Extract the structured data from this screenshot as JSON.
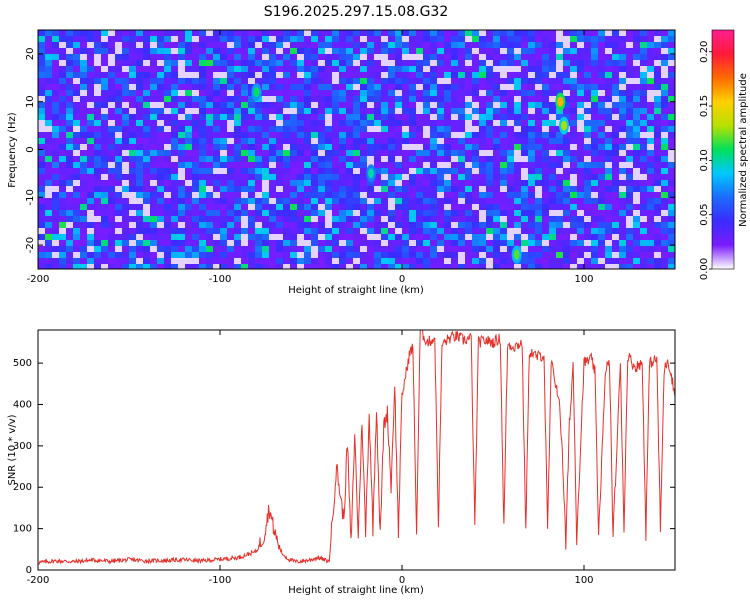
{
  "title": "S196.2025.297.15.08.G32",
  "colors": {
    "snr_line": "#e8302a",
    "colorbar": [
      "#ffffff",
      "#7a1cff",
      "#3a2cff",
      "#1c6bff",
      "#00c8ff",
      "#00e05a",
      "#b8e000",
      "#ffd000",
      "#ff6a00",
      "#ff1a3a",
      "#ff1f8f"
    ]
  },
  "chart_data": [
    {
      "type": "heatmap",
      "xlabel": "Height of straight line (km)",
      "ylabel": "Frequency (Hz)",
      "xlim": [
        -200,
        150
      ],
      "ylim": [
        -25,
        25
      ],
      "xticks": [
        -200,
        -100,
        0,
        100
      ],
      "xtick_labels": [
        "-200",
        "-100",
        "0",
        "100"
      ],
      "yticks": [
        -20,
        -10,
        0,
        10,
        20
      ],
      "ytick_labels": [
        "-20",
        "-10",
        "0",
        "10",
        "20"
      ],
      "colorbar": {
        "label": "Normalized spectral amplitude",
        "range": [
          0,
          0.22
        ],
        "ticks": [
          0,
          0.05,
          0.1,
          0.15,
          0.2
        ],
        "tick_labels": [
          "0.00",
          "0.05",
          "0.10",
          "0.15",
          "0.20"
        ]
      },
      "grid": false,
      "note_peaks": [
        {
          "x": 87,
          "y": 10,
          "value": 0.16
        },
        {
          "x": 89,
          "y": 5,
          "value": 0.13
        },
        {
          "x": -80,
          "y": 12,
          "value": 0.11
        },
        {
          "x": 63,
          "y": -22,
          "value": 0.12
        },
        {
          "x": -17,
          "y": -5,
          "value": 0.1
        }
      ]
    },
    {
      "type": "line",
      "xlabel": "Height of straight line (km)",
      "ylabel": "SNR (10 * v/v)",
      "xlim": [
        -200,
        150
      ],
      "ylim": [
        0,
        580
      ],
      "xticks": [
        -200,
        -100,
        0,
        100
      ],
      "xtick_labels": [
        "-200",
        "-100",
        "0",
        "100"
      ],
      "yticks": [
        0,
        100,
        200,
        300,
        400,
        500
      ],
      "ytick_labels": [
        "0",
        "100",
        "200",
        "300",
        "400",
        "500"
      ],
      "grid": false,
      "series": [
        {
          "name": "",
          "x": [
            -200,
            -190,
            -180,
            -170,
            -160,
            -150,
            -140,
            -130,
            -120,
            -110,
            -100,
            -90,
            -80,
            -76,
            -73,
            -70,
            -66,
            -62,
            -58,
            -54,
            -50,
            -46,
            -40,
            -36,
            -32,
            -30,
            -28,
            -26,
            -24,
            -22,
            -20,
            -18,
            -16,
            -14,
            -12,
            -10,
            -8,
            -6,
            -4,
            -2,
            0,
            2,
            4,
            6,
            8,
            10,
            14,
            18,
            20,
            22,
            26,
            30,
            34,
            38,
            40,
            42,
            46,
            50,
            54,
            56,
            58,
            62,
            66,
            68,
            70,
            74,
            78,
            80,
            82,
            86,
            88,
            90,
            92,
            94,
            96,
            100,
            104,
            106,
            108,
            112,
            114,
            116,
            120,
            122,
            124,
            128,
            132,
            134,
            136,
            140,
            142,
            144,
            146,
            148,
            150
          ],
          "y": [
            18,
            22,
            20,
            24,
            21,
            25,
            22,
            23,
            25,
            22,
            26,
            30,
            45,
            80,
            150,
            90,
            40,
            25,
            20,
            22,
            25,
            30,
            20,
            250,
            120,
            310,
            60,
            330,
            80,
            360,
            90,
            380,
            100,
            400,
            80,
            350,
            380,
            200,
            450,
            90,
            420,
            470,
            520,
            540,
            90,
            580,
            550,
            560,
            110,
            545,
            560,
            565,
            555,
            560,
            100,
            550,
            555,
            550,
            560,
            100,
            545,
            540,
            550,
            100,
            530,
            515,
            520,
            90,
            500,
            420,
            300,
            60,
            350,
            500,
            80,
            500,
            510,
            480,
            90,
            490,
            500,
            80,
            500,
            100,
            520,
            490,
            500,
            90,
            500,
            510,
            100,
            480,
            510,
            470,
            420
          ]
        }
      ]
    }
  ]
}
